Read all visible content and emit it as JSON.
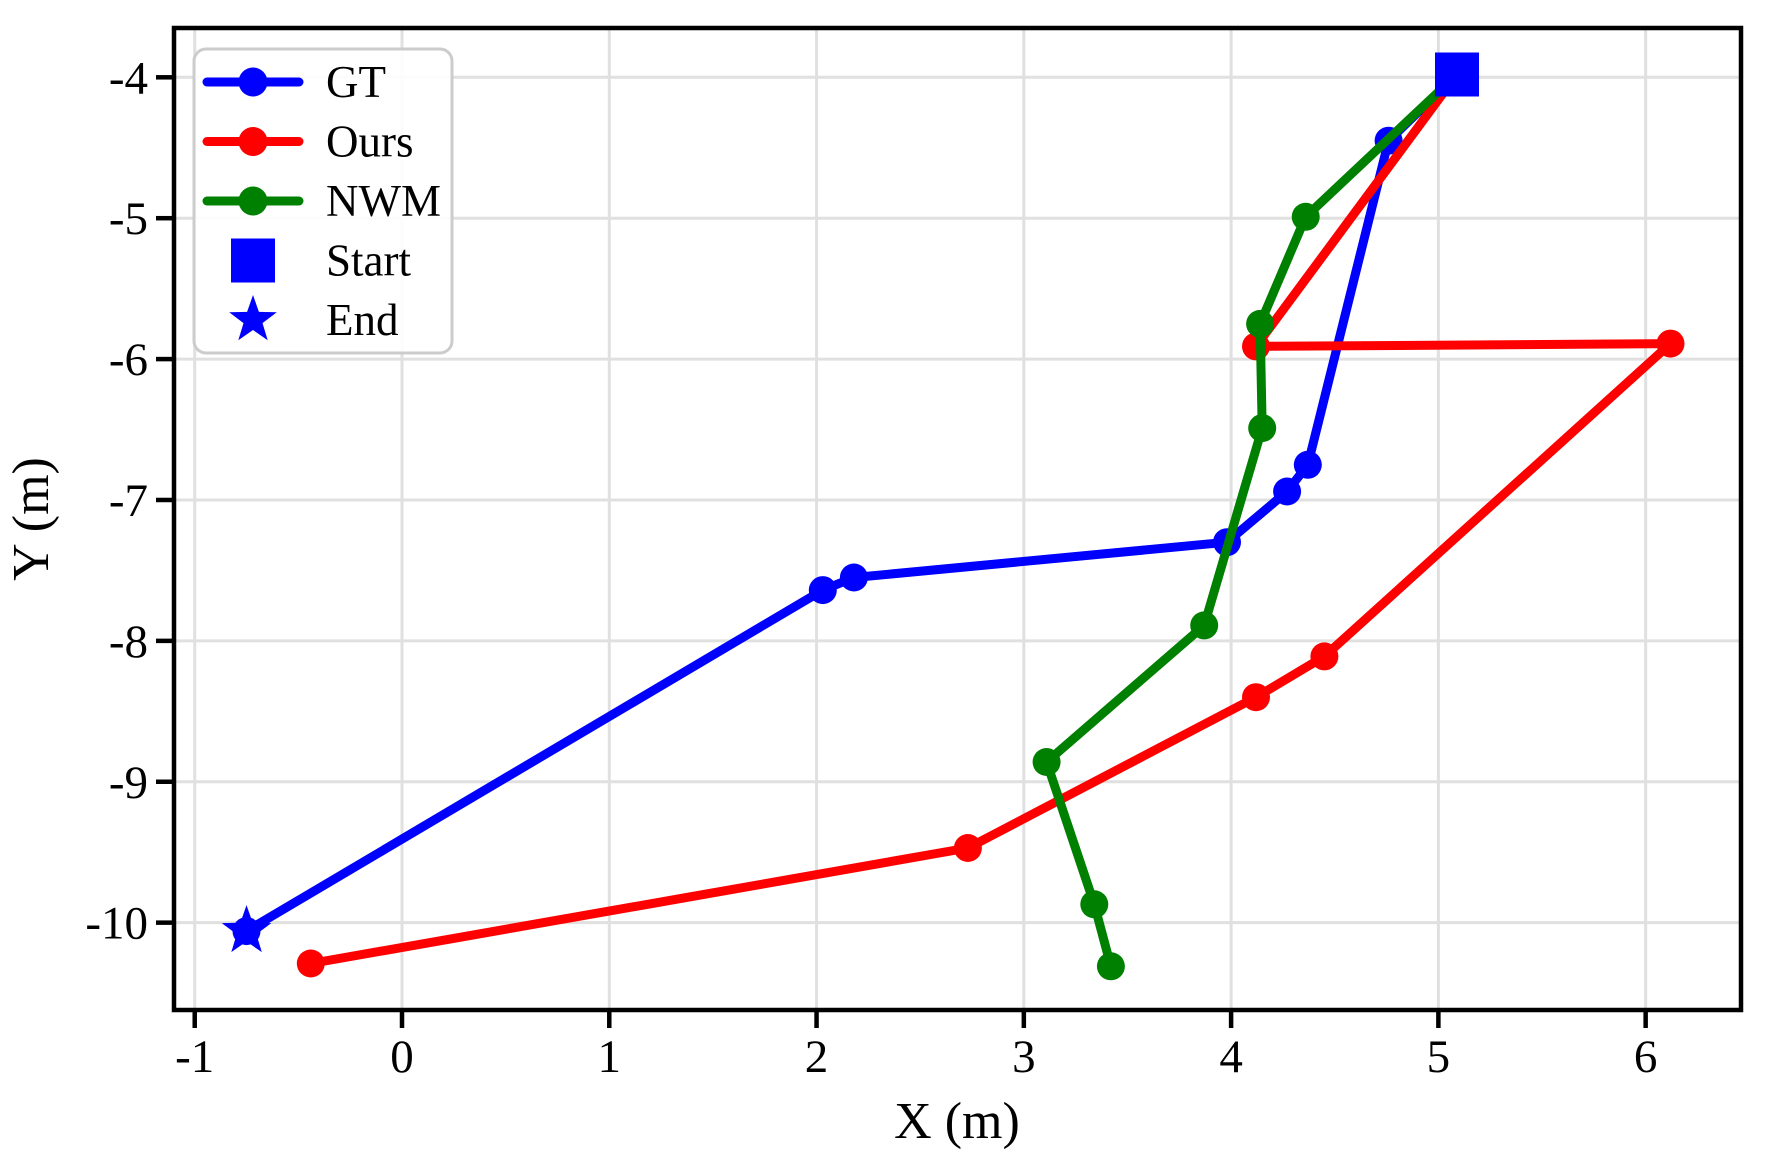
{
  "chart_data": {
    "type": "line",
    "title": "",
    "xlabel": "X (m)",
    "ylabel": "Y (m)",
    "xlim": [
      -1.1,
      6.46
    ],
    "ylim": [
      -10.62,
      -3.65
    ],
    "xticks": [
      -1,
      0,
      1,
      2,
      3,
      4,
      5,
      6
    ],
    "yticks": [
      -4,
      -5,
      -6,
      -7,
      -8,
      -9,
      -10
    ],
    "grid": true,
    "grid_color": "#e0e0e0",
    "legend_position": "upper-left",
    "series": [
      {
        "name": "GT",
        "color": "#0000ff",
        "marker": "circle",
        "points": [
          [
            5.09,
            -3.98
          ],
          [
            4.76,
            -4.45
          ],
          [
            4.37,
            -6.75
          ],
          [
            4.27,
            -6.94
          ],
          [
            3.98,
            -7.3
          ],
          [
            2.18,
            -7.55
          ],
          [
            2.03,
            -7.64
          ],
          [
            -0.75,
            -10.06
          ]
        ]
      },
      {
        "name": "Ours",
        "color": "#ff0000",
        "marker": "circle",
        "points": [
          [
            5.09,
            -3.98
          ],
          [
            4.12,
            -5.91
          ],
          [
            6.12,
            -5.89
          ],
          [
            4.45,
            -8.11
          ],
          [
            4.12,
            -8.4
          ],
          [
            2.73,
            -9.47
          ],
          [
            -0.44,
            -10.29
          ]
        ]
      },
      {
        "name": "NWM",
        "color": "#008000",
        "marker": "circle",
        "points": [
          [
            5.09,
            -3.98
          ],
          [
            4.36,
            -4.99
          ],
          [
            4.14,
            -5.75
          ],
          [
            4.15,
            -6.49
          ],
          [
            3.87,
            -7.89
          ],
          [
            3.11,
            -8.86
          ],
          [
            3.34,
            -9.87
          ],
          [
            3.42,
            -10.31
          ]
        ]
      }
    ],
    "annotations": [
      {
        "label": "Start",
        "shape": "square",
        "color": "#0000ff",
        "point": [
          5.09,
          -3.98
        ]
      },
      {
        "label": "End",
        "shape": "star",
        "color": "#0000ff",
        "point": [
          -0.75,
          -10.06
        ]
      }
    ],
    "legend": [
      {
        "label": "GT",
        "color": "#0000ff",
        "sample": "line-circle"
      },
      {
        "label": "Ours",
        "color": "#ff0000",
        "sample": "line-circle"
      },
      {
        "label": "NWM",
        "color": "#008000",
        "sample": "line-circle"
      },
      {
        "label": "Start",
        "color": "#0000ff",
        "sample": "square"
      },
      {
        "label": "End",
        "color": "#0000ff",
        "sample": "star"
      }
    ]
  }
}
